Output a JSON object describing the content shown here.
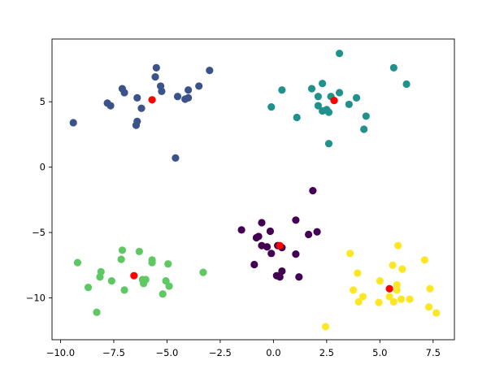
{
  "chart_data": {
    "type": "scatter",
    "title": "",
    "xlabel": "",
    "ylabel": "",
    "xlim": [
      -10.4,
      8.5
    ],
    "ylim": [
      -13.2,
      9.8
    ],
    "grid": false,
    "legend": "none",
    "x_ticks": [
      -10.0,
      -7.5,
      -5.0,
      -2.5,
      0.0,
      2.5,
      5.0,
      7.5
    ],
    "x_tick_labels": [
      "−10.0",
      "−7.5",
      "−5.0",
      "−2.5",
      "0.0",
      "2.5",
      "5.0",
      "7.5"
    ],
    "y_ticks": [
      -10,
      -5,
      0,
      5
    ],
    "y_tick_labels": [
      "−10",
      "−5",
      "0",
      "5"
    ],
    "series": [
      {
        "color": "#3b528b",
        "points": [
          [
            -9.4,
            3.4
          ],
          [
            -7.8,
            4.9
          ],
          [
            -7.65,
            4.7
          ],
          [
            -7.1,
            6.0
          ],
          [
            -7.0,
            5.7
          ],
          [
            -6.4,
            5.3
          ],
          [
            -6.4,
            3.5
          ],
          [
            -6.45,
            3.2
          ],
          [
            -6.2,
            4.5
          ],
          [
            -5.5,
            7.6
          ],
          [
            -5.55,
            6.9
          ],
          [
            -5.3,
            6.2
          ],
          [
            -5.25,
            5.8
          ],
          [
            -4.6,
            0.7
          ],
          [
            -4.5,
            5.4
          ],
          [
            -4.15,
            5.2
          ],
          [
            -4.0,
            5.3
          ],
          [
            -4.0,
            5.9
          ],
          [
            -3.5,
            6.2
          ],
          [
            -3.0,
            7.4
          ]
        ]
      },
      {
        "color": "#21918c",
        "points": [
          [
            -0.1,
            4.6
          ],
          [
            0.4,
            5.9
          ],
          [
            1.1,
            3.8
          ],
          [
            1.8,
            6.0
          ],
          [
            2.1,
            5.4
          ],
          [
            2.1,
            4.7
          ],
          [
            2.3,
            6.4
          ],
          [
            2.3,
            4.3
          ],
          [
            2.5,
            4.4
          ],
          [
            2.6,
            4.2
          ],
          [
            2.6,
            1.8
          ],
          [
            2.7,
            5.4
          ],
          [
            3.1,
            5.7
          ],
          [
            3.1,
            8.7
          ],
          [
            3.55,
            4.8
          ],
          [
            3.9,
            5.3
          ],
          [
            4.25,
            2.9
          ],
          [
            4.35,
            3.9
          ],
          [
            5.65,
            7.6
          ],
          [
            6.25,
            6.35
          ]
        ]
      },
      {
        "color": "#440154",
        "points": [
          [
            -1.5,
            -4.8
          ],
          [
            -0.9,
            -7.45
          ],
          [
            -0.8,
            -5.4
          ],
          [
            -0.7,
            -5.3
          ],
          [
            -0.55,
            -4.25
          ],
          [
            -0.55,
            -6.0
          ],
          [
            -0.3,
            -6.1
          ],
          [
            -0.15,
            -4.9
          ],
          [
            -0.1,
            -6.6
          ],
          [
            0.15,
            -8.3
          ],
          [
            0.3,
            -8.4
          ],
          [
            0.4,
            -7.95
          ],
          [
            0.4,
            -6.15
          ],
          [
            1.05,
            -4.05
          ],
          [
            1.05,
            -6.65
          ],
          [
            1.2,
            -8.4
          ],
          [
            1.65,
            -5.15
          ],
          [
            1.85,
            -1.8
          ],
          [
            2.05,
            -4.95
          ],
          [
            0.2,
            -6.0
          ]
        ]
      },
      {
        "color": "#5ec962",
        "points": [
          [
            -9.2,
            -7.3
          ],
          [
            -8.7,
            -9.2
          ],
          [
            -8.3,
            -11.1
          ],
          [
            -8.1,
            -8.0
          ],
          [
            -8.15,
            -8.4
          ],
          [
            -7.6,
            -8.7
          ],
          [
            -7.1,
            -6.35
          ],
          [
            -7.15,
            -7.05
          ],
          [
            -7.0,
            -9.4
          ],
          [
            -6.3,
            -6.45
          ],
          [
            -6.15,
            -8.6
          ],
          [
            -6.0,
            -8.6
          ],
          [
            -6.1,
            -8.9
          ],
          [
            -5.7,
            -7.1
          ],
          [
            -5.7,
            -7.3
          ],
          [
            -5.2,
            -9.7
          ],
          [
            -5.05,
            -8.7
          ],
          [
            -4.95,
            -7.4
          ],
          [
            -4.9,
            -9.1
          ],
          [
            -3.3,
            -8.05
          ]
        ]
      },
      {
        "color": "#fde725",
        "points": [
          [
            2.45,
            -12.2
          ],
          [
            3.6,
            -6.6
          ],
          [
            3.75,
            -9.4
          ],
          [
            3.95,
            -8.1
          ],
          [
            4.0,
            -10.3
          ],
          [
            4.2,
            -9.9
          ],
          [
            4.95,
            -10.35
          ],
          [
            5.0,
            -8.7
          ],
          [
            5.45,
            -9.9
          ],
          [
            5.6,
            -7.5
          ],
          [
            5.65,
            -10.3
          ],
          [
            5.8,
            -9.0
          ],
          [
            5.8,
            -9.4
          ],
          [
            5.85,
            -6.0
          ],
          [
            6.0,
            -10.1
          ],
          [
            6.05,
            -7.8
          ],
          [
            6.4,
            -10.1
          ],
          [
            7.1,
            -7.1
          ],
          [
            7.3,
            -10.7
          ],
          [
            7.35,
            -9.3
          ],
          [
            7.65,
            -11.15
          ]
        ]
      }
    ],
    "centroids": {
      "color": "#ff0000",
      "points": [
        [
          -5.7,
          5.15
        ],
        [
          2.85,
          5.1
        ],
        [
          0.3,
          -6.0
        ],
        [
          -6.55,
          -8.3
        ],
        [
          5.45,
          -9.3
        ]
      ]
    }
  }
}
